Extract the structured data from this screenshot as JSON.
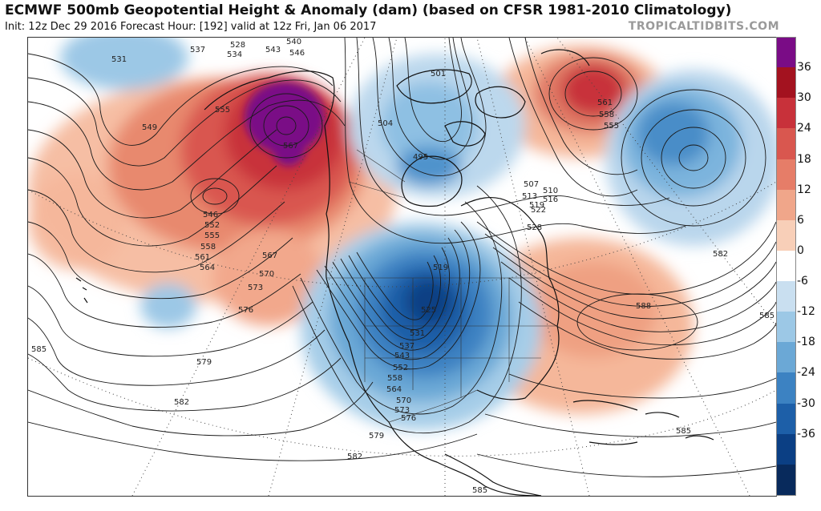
{
  "header": {
    "title": "ECMWF 500mb Geopotential Height & Anomaly (dam) (based on CFSR 1981-2010 Climatology)",
    "subtitle": "Init: 12z Dec 29 2016   Forecast Hour: [192]   valid at 12z Fri, Jan 06 2017",
    "watermark": "TROPICALTIDBITS.COM"
  },
  "colorbar": {
    "labels": [
      "36",
      "30",
      "24",
      "18",
      "12",
      "6",
      "0",
      "-6",
      "-12",
      "-18",
      "-24",
      "-30",
      "-36"
    ],
    "colors": [
      "#7a0c86",
      "#a3121f",
      "#c8313a",
      "#d9574f",
      "#e67d68",
      "#f0a68a",
      "#f8cfb8",
      "#ffffff",
      "#c9dff0",
      "#9cc8e6",
      "#6ba8d6",
      "#3c82c2",
      "#1d5fa8",
      "#0b3f84",
      "#082a5c"
    ]
  },
  "contour_labels": {
    "c531": "531",
    "c537": "537",
    "c528": "528",
    "c534": "534",
    "c540": "540",
    "c543": "543",
    "c546": "546",
    "c555a": "555",
    "c549": "549",
    "c567a": "567",
    "c546b": "546",
    "c552": "552",
    "c555b": "555",
    "c558a": "558",
    "c561a": "561",
    "c564a": "564",
    "c567b": "567",
    "c570a": "570",
    "c573a": "573",
    "c576a": "576",
    "c501": "501",
    "c504": "504",
    "c495": "495",
    "c561b": "561",
    "c558b": "558",
    "c555c": "555",
    "c507": "507",
    "c510": "510",
    "c513": "513",
    "c516": "516",
    "c519a": "519",
    "c522": "522",
    "c528b": "528",
    "c582a": "582",
    "c519b": "519",
    "c525": "525",
    "c531b": "531",
    "c537b": "537",
    "c543b": "543",
    "c552b": "552",
    "c558c": "558",
    "c564b": "564",
    "c570b": "570",
    "c573b": "573",
    "c576b": "576",
    "c588": "588",
    "c585a": "585",
    "c585b": "585",
    "c579a": "579",
    "c582b": "582",
    "c579b": "579",
    "c582c": "582",
    "c585c": "585",
    "c585d": "585"
  }
}
